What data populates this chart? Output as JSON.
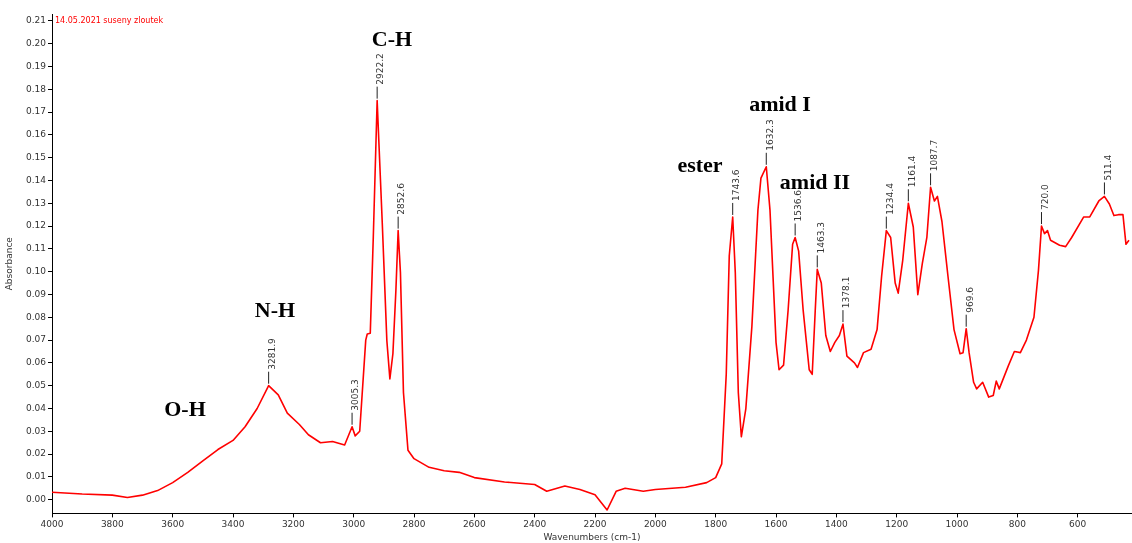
{
  "chart_data": {
    "type": "line",
    "title": "14.05.2021 suseny zloutek",
    "xlabel": "Wavenumbers (cm-1)",
    "ylabel": "Absorbance",
    "xlim": [
      4000,
      420
    ],
    "ylim": [
      -0.006,
      0.213
    ],
    "xticks": [
      4000,
      3800,
      3600,
      3400,
      3200,
      3000,
      2800,
      2600,
      2400,
      2200,
      2000,
      1800,
      1600,
      1400,
      1200,
      1000,
      800,
      600
    ],
    "yticks": [
      {
        "value": 0,
        "label": "0.00"
      },
      {
        "value": 0.01,
        "label": "0.01"
      },
      {
        "value": 0.02,
        "label": "0.02"
      },
      {
        "value": 0.03,
        "label": "0.03"
      },
      {
        "value": 0.04,
        "label": "0.04"
      },
      {
        "value": 0.05,
        "label": "0.05"
      },
      {
        "value": 0.06,
        "label": "0.06"
      },
      {
        "value": 0.07,
        "label": "0.07"
      },
      {
        "value": 0.08,
        "label": "0.08"
      },
      {
        "value": 0.09,
        "label": "0.09"
      },
      {
        "value": 0.1,
        "label": "0.10"
      },
      {
        "value": 0.11,
        "label": "0.11"
      },
      {
        "value": 0.12,
        "label": "0.12"
      },
      {
        "value": 0.13,
        "label": "0.13"
      },
      {
        "value": 0.14,
        "label": "0.14"
      },
      {
        "value": 0.15,
        "label": "0.15"
      },
      {
        "value": 0.16,
        "label": "0.16"
      },
      {
        "value": 0.17,
        "label": "0.17"
      },
      {
        "value": 0.18,
        "label": "0.18"
      },
      {
        "value": 0.19,
        "label": "0.19"
      },
      {
        "value": 0.2,
        "label": "0.20"
      },
      {
        "value": 0.21,
        "label": "0.21"
      }
    ],
    "grid": false,
    "legend": false,
    "marker": "none",
    "line_style": "solid",
    "series": [
      {
        "color": "#ff0000",
        "x": [
          4000,
          3900,
          3800,
          3750,
          3700,
          3650,
          3600,
          3550,
          3500,
          3450,
          3400,
          3360,
          3320,
          3281.9,
          3250,
          3220,
          3180,
          3150,
          3110,
          3070,
          3030,
          3005.3,
          2995,
          2980,
          2960,
          2955,
          2945,
          2935,
          2922.2,
          2905,
          2890,
          2880,
          2870,
          2860,
          2852.6,
          2845,
          2835,
          2820,
          2800,
          2750,
          2700,
          2650,
          2600,
          2500,
          2400,
          2360,
          2300,
          2250,
          2200,
          2160,
          2130,
          2100,
          2040,
          2000,
          1900,
          1830,
          1800,
          1780,
          1765,
          1755,
          1743.6,
          1735,
          1725,
          1715,
          1700,
          1680,
          1660,
          1650,
          1632.3,
          1620,
          1610,
          1600,
          1590,
          1575,
          1560,
          1545,
          1536.6,
          1525,
          1510,
          1490,
          1480,
          1470,
          1463.3,
          1450,
          1435,
          1420,
          1405,
          1390,
          1378.1,
          1365,
          1340,
          1330,
          1310,
          1285,
          1265,
          1250,
          1234.4,
          1220,
          1205,
          1195,
          1180,
          1161.4,
          1145,
          1130,
          1115,
          1100,
          1087.7,
          1075,
          1065,
          1050,
          1030,
          1010,
          990,
          980,
          969.6,
          960,
          945,
          935,
          915,
          895,
          880,
          870,
          860,
          830,
          810,
          790,
          770,
          745,
          730,
          720,
          710,
          700,
          690,
          660,
          640,
          620,
          580,
          560,
          530,
          511.4,
          495,
          480,
          465,
          450,
          440,
          430
        ],
        "values": [
          0.0033,
          0.0025,
          0.002,
          0.001,
          0.002,
          0.004,
          0.0075,
          0.012,
          0.017,
          0.022,
          0.026,
          0.032,
          0.04,
          0.05,
          0.046,
          0.038,
          0.033,
          0.0285,
          0.025,
          0.0255,
          0.024,
          0.032,
          0.028,
          0.03,
          0.07,
          0.0727,
          0.073,
          0.115,
          0.175,
          0.1206,
          0.0697,
          0.053,
          0.064,
          0.092,
          0.118,
          0.0996,
          0.047,
          0.0217,
          0.018,
          0.0142,
          0.0127,
          0.012,
          0.0097,
          0.0078,
          0.0067,
          0.0037,
          0.006,
          0.0045,
          0.0022,
          -0.0045,
          0.0037,
          0.005,
          0.0037,
          0.0045,
          0.0055,
          0.0075,
          0.0097,
          0.0157,
          0.055,
          0.107,
          0.124,
          0.0996,
          0.047,
          0.0276,
          0.04,
          0.076,
          0.127,
          0.141,
          0.146,
          0.127,
          0.098,
          0.069,
          0.057,
          0.059,
          0.083,
          0.112,
          0.115,
          0.109,
          0.083,
          0.057,
          0.055,
          0.083,
          0.101,
          0.095,
          0.072,
          0.065,
          0.069,
          0.072,
          0.077,
          0.063,
          0.06,
          0.058,
          0.0645,
          0.066,
          0.0746,
          0.098,
          0.118,
          0.115,
          0.095,
          0.0906,
          0.105,
          0.13,
          0.1196,
          0.0899,
          0.1036,
          0.115,
          0.137,
          0.131,
          0.133,
          0.122,
          0.098,
          0.0746,
          0.064,
          0.0645,
          0.075,
          0.0645,
          0.0515,
          0.0486,
          0.0515,
          0.045,
          0.0457,
          0.052,
          0.0486,
          0.0587,
          0.065,
          0.0645,
          0.07,
          0.08,
          0.1007,
          0.12,
          0.1167,
          0.118,
          0.1138,
          0.1116,
          0.111,
          0.115,
          0.124,
          0.124,
          0.131,
          0.133,
          0.1297,
          0.1246,
          0.125,
          0.125,
          0.112,
          0.1138
        ]
      }
    ],
    "annotations": [
      {
        "text": "3281.9",
        "x": 3281.9,
        "y": 0.05
      },
      {
        "text": "3005.3",
        "x": 3005.3,
        "y": 0.032
      },
      {
        "text": "2922.2",
        "x": 2922.2,
        "y": 0.175
      },
      {
        "text": "2852.6",
        "x": 2852.6,
        "y": 0.118
      },
      {
        "text": "1743.6",
        "x": 1743.6,
        "y": 0.124
      },
      {
        "text": "1632.3",
        "x": 1632.3,
        "y": 0.146
      },
      {
        "text": "1536.6",
        "x": 1536.6,
        "y": 0.115
      },
      {
        "text": "1463.3",
        "x": 1463.3,
        "y": 0.101
      },
      {
        "text": "1378.1",
        "x": 1378.1,
        "y": 0.077
      },
      {
        "text": "1234.4",
        "x": 1234.4,
        "y": 0.118
      },
      {
        "text": "1161.4",
        "x": 1161.4,
        "y": 0.13
      },
      {
        "text": "1087.7",
        "x": 1087.7,
        "y": 0.137
      },
      {
        "text": "969.6",
        "x": 969.6,
        "y": 0.075
      },
      {
        "text": "720.0",
        "x": 720,
        "y": 0.12
      },
      {
        "text": "511.4",
        "x": 511.4,
        "y": 0.133
      },
      "O-H",
      "N-H",
      "C-H",
      "ester",
      "amid I",
      "amid II"
    ]
  }
}
